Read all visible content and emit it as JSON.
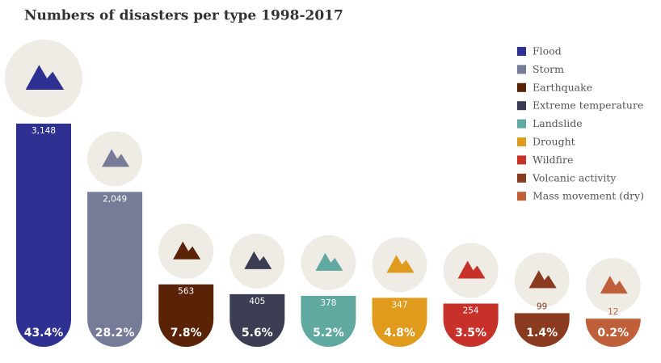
{
  "chart_data": {
    "type": "bar",
    "title": "Numbers of disasters per type 1998-2017",
    "categories": [
      "Flood",
      "Storm",
      "Earthquake",
      "Extreme temperature",
      "Landslide",
      "Drought",
      "Wildfire",
      "Volcanic activity",
      "Mass movement (dry)"
    ],
    "values": [
      3148,
      2049,
      563,
      405,
      378,
      347,
      254,
      99,
      12
    ],
    "value_labels": [
      "3,148",
      "2,049",
      "563",
      "405",
      "378",
      "347",
      "254",
      "99",
      "12"
    ],
    "shares": [
      43.4,
      28.2,
      7.8,
      5.6,
      5.2,
      4.8,
      3.5,
      1.4,
      0.2
    ],
    "share_labels": [
      "43.4%",
      "28.2%",
      "7.8%",
      "5.6%",
      "5.2%",
      "4.8%",
      "3.5%",
      "1.4%",
      "0.2%"
    ],
    "colors": [
      "#2e3192",
      "#767b98",
      "#5a2308",
      "#3b3d52",
      "#5fa9a0",
      "#e09a1c",
      "#c8302a",
      "#8a3b1f",
      "#c0603a"
    ]
  }
}
